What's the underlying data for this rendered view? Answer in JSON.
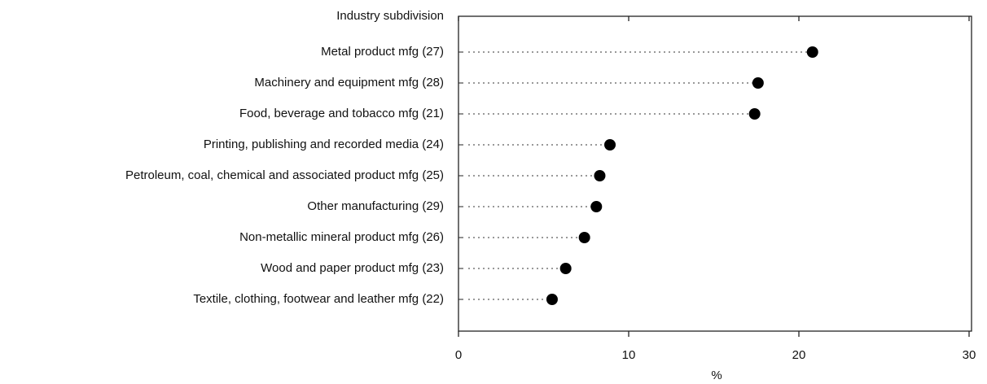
{
  "chart_data": {
    "type": "dot",
    "y_label": "Industry subdivision",
    "x_label": "%",
    "categories": [
      "Metal product mfg (27)",
      "Machinery and equipment mfg (28)",
      "Food, beverage and tobacco mfg (21)",
      "Printing, publishing and recorded media (24)",
      "Petroleum, coal, chemical and associated product mfg (25)",
      "Other manufacturing (29)",
      "Non-metallic mineral product mfg (26)",
      "Wood and paper product mfg (23)",
      "Textile, clothing, footwear and leather mfg (22)"
    ],
    "values": [
      20.8,
      17.6,
      17.4,
      8.9,
      8.3,
      8.1,
      7.4,
      6.3,
      5.5
    ],
    "color": "#000000",
    "xlim": [
      0,
      30
    ],
    "xticks": [
      0,
      10,
      20,
      30
    ]
  }
}
